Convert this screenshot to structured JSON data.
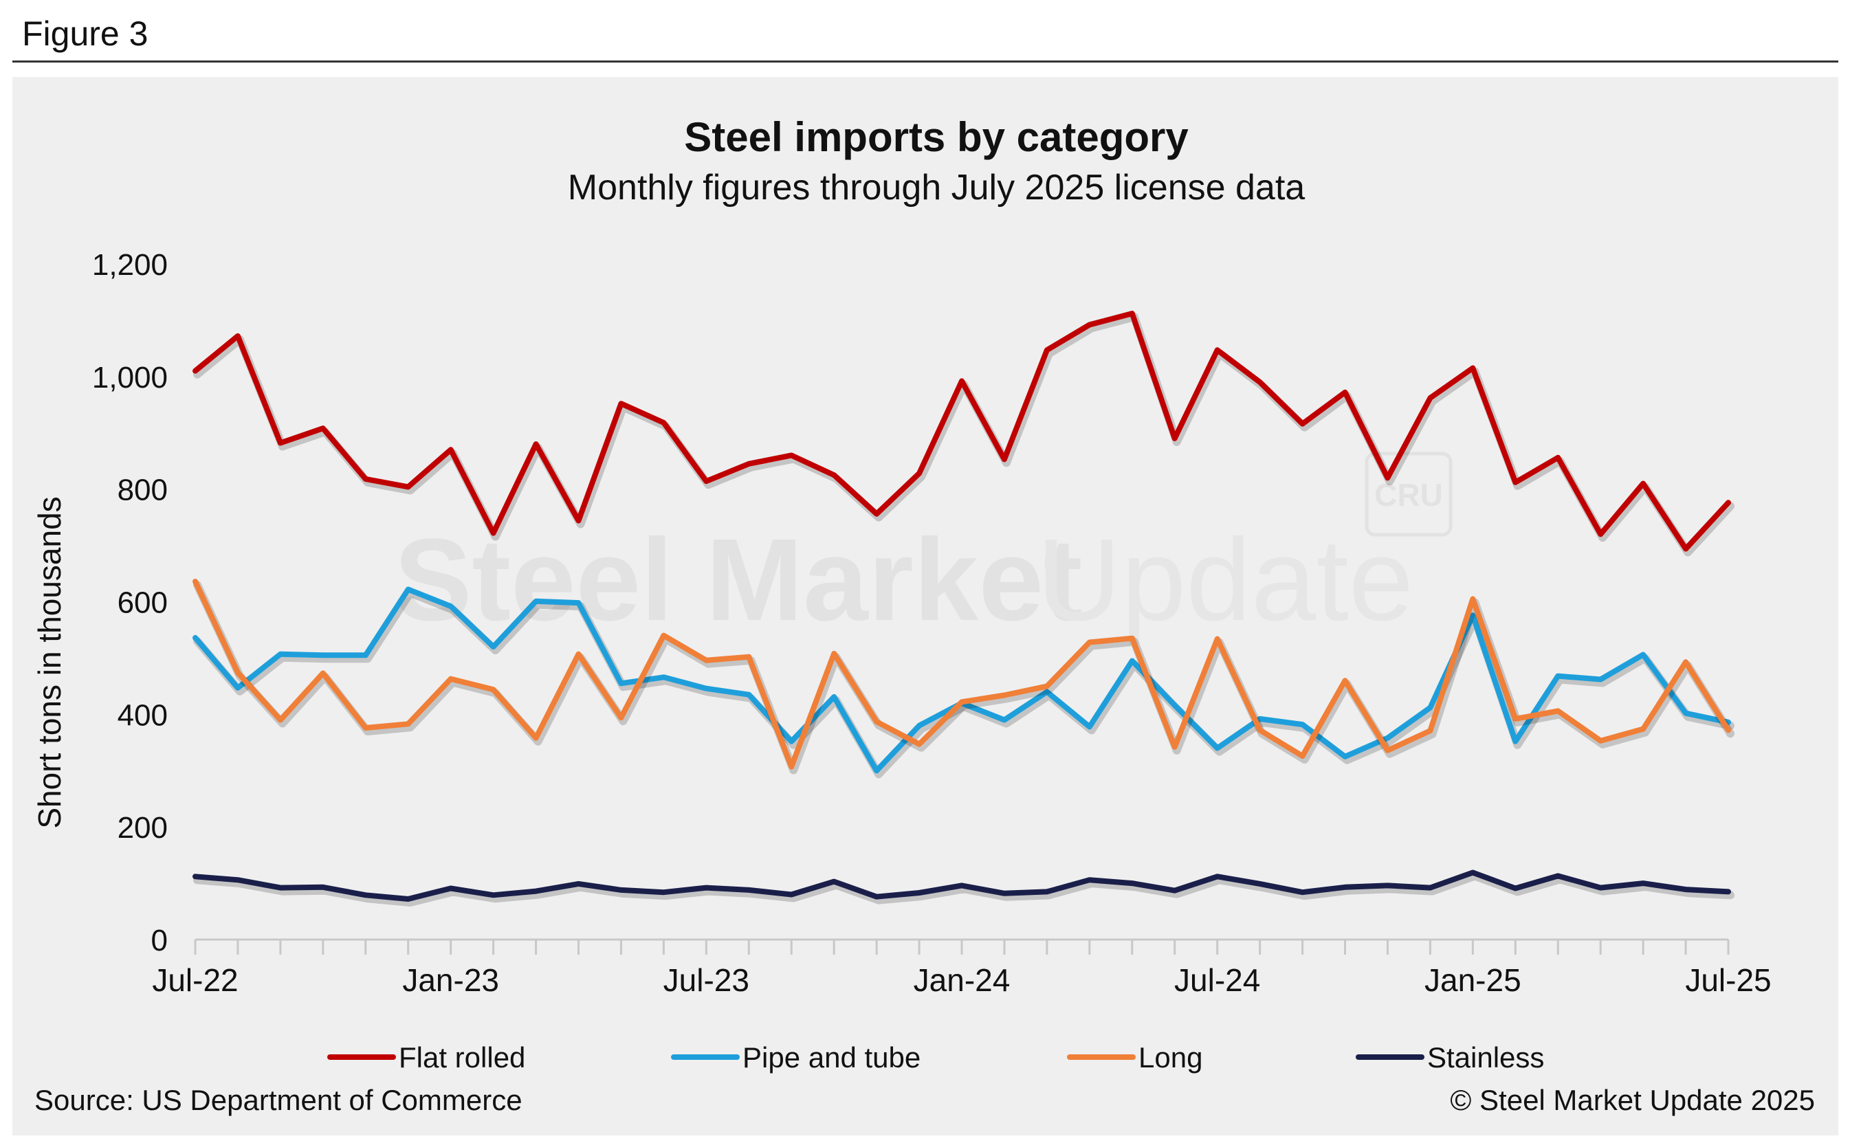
{
  "figure_label": "Figure 3",
  "source": "Source: US Department of Commerce",
  "copyright": "© Steel Market Update 2025",
  "watermark": {
    "text_bold": "Steel Market",
    "text_light": "Update",
    "badge": "CRU"
  },
  "chart_data": {
    "type": "line",
    "title": "Steel imports by category",
    "subtitle": "Monthly figures through July 2025 license data",
    "ylabel": "Short tons in thousands",
    "xlabel": "",
    "ylim": [
      0,
      1200
    ],
    "yticks": [
      "0",
      "200",
      "400",
      "600",
      "800",
      "1,000",
      "1,200"
    ],
    "ytick_values": [
      0,
      200,
      400,
      600,
      800,
      1000,
      1200
    ],
    "x_tick_labels": [
      {
        "index": 0,
        "label": "Jul-22"
      },
      {
        "index": 6,
        "label": "Jan-23"
      },
      {
        "index": 12,
        "label": "Jul-23"
      },
      {
        "index": 18,
        "label": "Jan-24"
      },
      {
        "index": 24,
        "label": "Jul-24"
      },
      {
        "index": 30,
        "label": "Jan-25"
      },
      {
        "index": 36,
        "label": "Jul-25"
      }
    ],
    "x": [
      "Jul-22",
      "Aug-22",
      "Sep-22",
      "Oct-22",
      "Nov-22",
      "Dec-22",
      "Jan-23",
      "Feb-23",
      "Mar-23",
      "Apr-23",
      "May-23",
      "Jun-23",
      "Jul-23",
      "Aug-23",
      "Sep-23",
      "Oct-23",
      "Nov-23",
      "Dec-23",
      "Jan-24",
      "Feb-24",
      "Mar-24",
      "Apr-24",
      "May-24",
      "Jun-24",
      "Jul-24",
      "Aug-24",
      "Sep-24",
      "Oct-24",
      "Nov-24",
      "Dec-24",
      "Jan-25",
      "Feb-25",
      "Mar-25",
      "Apr-25",
      "May-25",
      "Jun-25",
      "Jul-25"
    ],
    "grid": false,
    "legend_position": "bottom",
    "series": [
      {
        "name": "Flat rolled",
        "color": "#c00000",
        "values": [
          1010,
          1072,
          882,
          908,
          818,
          804,
          870,
          722,
          880,
          744,
          952,
          918,
          814,
          845,
          860,
          825,
          756,
          828,
          992,
          853,
          1047,
          1092,
          1112,
          890,
          1047,
          990,
          916,
          972,
          820,
          962,
          1015,
          812,
          856,
          720,
          810,
          694,
          776
        ]
      },
      {
        "name": "Pipe and tube",
        "color": "#1e9fdb",
        "values": [
          536,
          447,
          507,
          505,
          505,
          622,
          592,
          520,
          601,
          598,
          455,
          466,
          446,
          435,
          352,
          431,
          300,
          380,
          420,
          390,
          440,
          378,
          495,
          416,
          340,
          392,
          382,
          325,
          358,
          412,
          576,
          352,
          468,
          462,
          506,
          402,
          386
        ]
      },
      {
        "name": "Long",
        "color": "#f07f38",
        "values": [
          636,
          474,
          390,
          473,
          376,
          383,
          463,
          444,
          358,
          507,
          394,
          540,
          496,
          502,
          307,
          508,
          387,
          347,
          422,
          434,
          450,
          528,
          535,
          342,
          534,
          372,
          326,
          460,
          336,
          371,
          605,
          392,
          406,
          353,
          374,
          493,
          372
        ]
      },
      {
        "name": "Stainless",
        "color": "#1a1f4a",
        "values": [
          112,
          106,
          92,
          93,
          79,
          72,
          91,
          79,
          86,
          99,
          88,
          84,
          92,
          88,
          80,
          103,
          76,
          83,
          96,
          82,
          85,
          106,
          100,
          87,
          112,
          99,
          84,
          93,
          96,
          92,
          119,
          91,
          113,
          92,
          100,
          89,
          85
        ]
      }
    ]
  }
}
